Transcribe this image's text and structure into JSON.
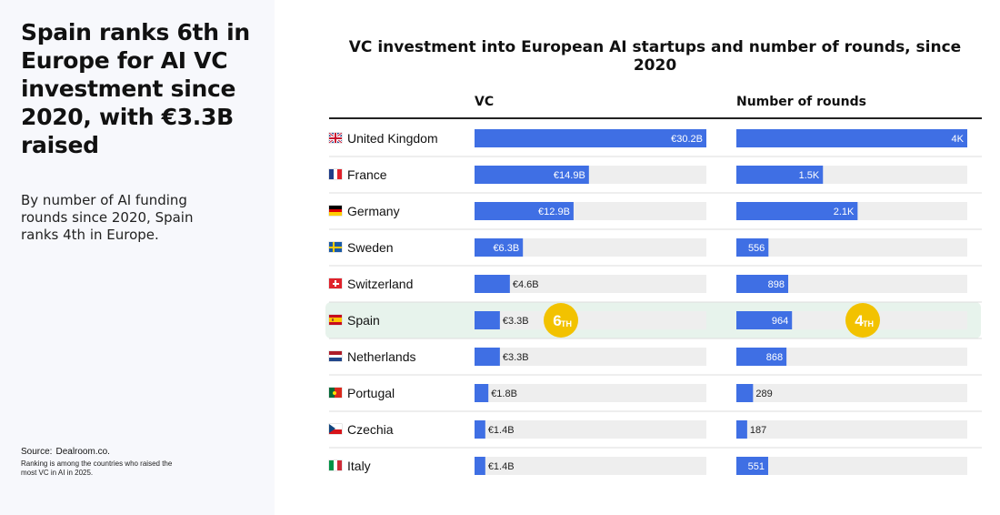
{
  "headline": "Spain ranks 6th in Europe for AI VC investment since 2020, with €3.3B raised",
  "subhead": "By number of AI funding rounds since 2020, Spain ranks 4th in Europe.",
  "source_label": "Source:",
  "source_name": "Dealroom.co.",
  "note": "Ranking is among the countries  who raised the most VC in AI in 2025.",
  "colors": {
    "bar": "#3f6fe4",
    "track": "#eeeeee",
    "highlight": "#e7f3ec",
    "badge": "#f2c200"
  },
  "chart_data": {
    "type": "bar",
    "title": "VC investment into European AI startups and number of rounds, since 2020",
    "categories": [
      "United Kingdom",
      "France",
      "Germany",
      "Sweden",
      "Switzerland",
      "Spain",
      "Netherlands",
      "Portugal",
      "Czechia",
      "Italy"
    ],
    "flags": [
      "flag-uk-icon",
      "flag-france-icon",
      "flag-germany-icon",
      "flag-sweden-icon",
      "flag-switzerland-icon",
      "flag-spain-icon",
      "flag-netherlands-icon",
      "flag-portugal-icon",
      "flag-czechia-icon",
      "flag-italy-icon"
    ],
    "series": [
      {
        "name": "VC",
        "unit": "€B",
        "max": 30.2,
        "values": [
          30.2,
          14.9,
          12.9,
          6.3,
          4.6,
          3.3,
          3.3,
          1.8,
          1.4,
          1.4
        ],
        "labels": [
          "€30.2B",
          "€14.9B",
          "€12.9B",
          "€6.3B",
          "€4.6B",
          "€3.3B",
          "€3.3B",
          "€1.8B",
          "€1.4B",
          "€1.4B"
        ]
      },
      {
        "name": "Number of rounds",
        "max": 4000,
        "values": [
          4000,
          1500,
          2100,
          556,
          898,
          964,
          868,
          289,
          187,
          551
        ],
        "labels": [
          "4K",
          "1.5K",
          "2.1K",
          "556",
          "898",
          "964",
          "868",
          "289",
          "187",
          "551"
        ]
      }
    ],
    "highlight": {
      "category": "Spain",
      "ranks": [
        {
          "series": "VC",
          "num": "6",
          "suffix": "TH"
        },
        {
          "series": "Number of rounds",
          "num": "4",
          "suffix": "TH"
        }
      ]
    }
  }
}
